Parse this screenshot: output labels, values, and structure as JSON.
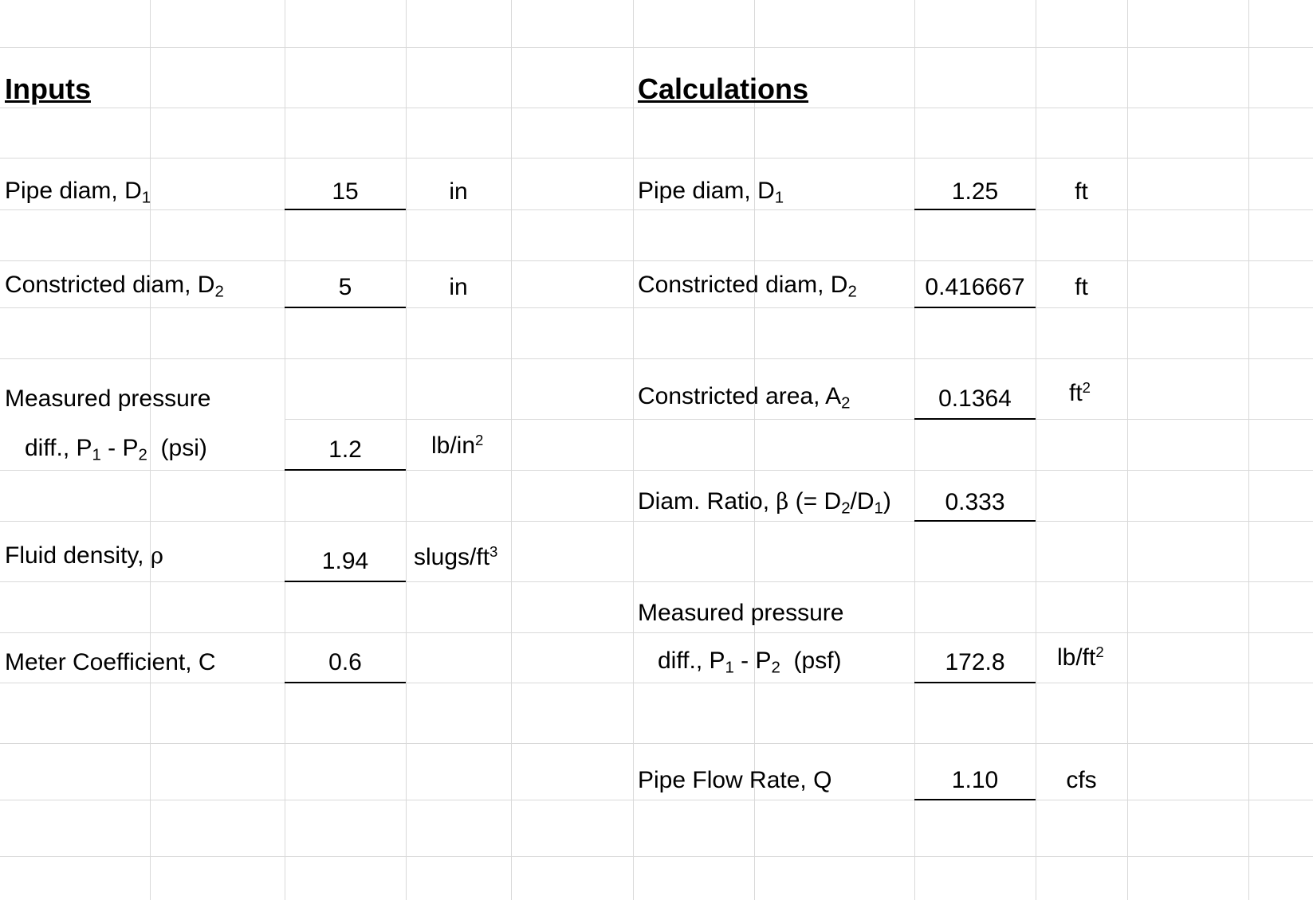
{
  "inputs": {
    "title": "Inputs",
    "pipe_diam": {
      "label": "Pipe diam, D",
      "sub": "1",
      "value": "15",
      "unit": "in"
    },
    "constricted_diam": {
      "label": "Constricted diam, D",
      "sub": "2",
      "value": "5",
      "unit": "in"
    },
    "pressure": {
      "label_line1": "Measured pressure",
      "label_line2_a": "diff., P",
      "sub1": "1",
      "label_line2_b": " - P",
      "sub2": "2",
      "label_line2_c": "  (psi)",
      "value": "1.2",
      "unit_base": "lb/in",
      "unit_sup": "2"
    },
    "density": {
      "label": "Fluid density, ",
      "symbol": "ρ",
      "value": "1.94",
      "unit_base": "slugs/ft",
      "unit_sup": "3"
    },
    "coefficient": {
      "label": "Meter Coefficient, C",
      "value": "0.6"
    }
  },
  "calculations": {
    "title": "Calculations",
    "pipe_diam": {
      "label": "Pipe diam, D",
      "sub": "1",
      "value": "1.25",
      "unit": "ft"
    },
    "constricted_diam": {
      "label": "Constricted diam, D",
      "sub": "2",
      "value": "0.416667",
      "unit": "ft"
    },
    "constricted_area": {
      "label": "Constricted area, A",
      "sub": "2",
      "value": "0.1364",
      "unit_base": "ft",
      "unit_sup": "2"
    },
    "diam_ratio": {
      "label_a": "Diam. Ratio, ",
      "symbol": "β",
      "label_b": " (= D",
      "sub_a": "2",
      "label_c": "/D",
      "sub_b": "1",
      "label_d": ")",
      "value": "0.333"
    },
    "pressure": {
      "label_line1": "Measured pressure",
      "label_line2_a": "diff., P",
      "sub1": "1",
      "label_line2_b": " - P",
      "sub2": "2",
      "label_line2_c": "  (psf)",
      "value": "172.8",
      "unit_base": "lb/ft",
      "unit_sup": "2"
    },
    "flow_rate": {
      "label": "Pipe Flow Rate, Q",
      "value": "1.10",
      "unit": "cfs"
    }
  }
}
